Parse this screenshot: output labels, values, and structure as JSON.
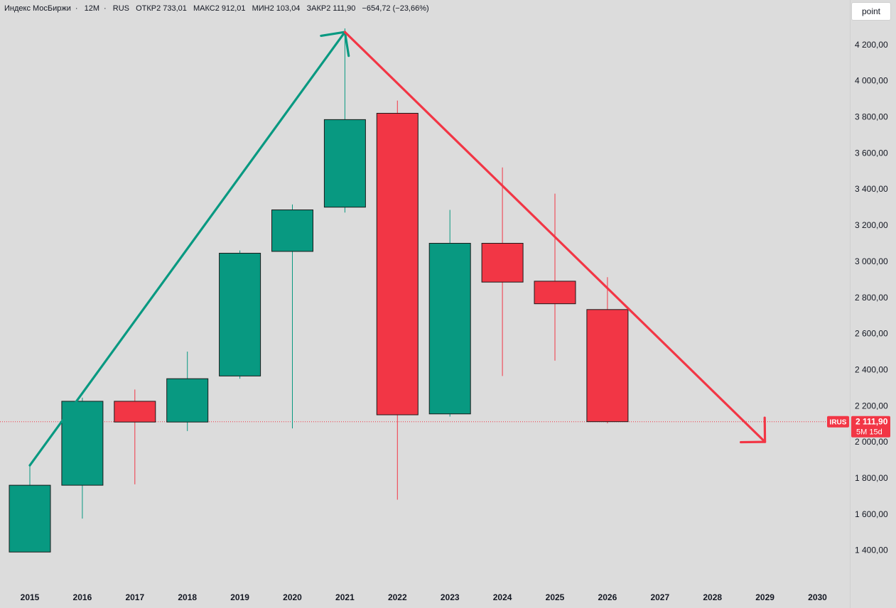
{
  "header": {
    "symbol": "Индекс МосБиржи",
    "interval": "12M",
    "exchange": "RUS",
    "open": "ОТКР2 733,01",
    "high": "МАКС2 912,01",
    "low": "МИН2 103,04",
    "close": "ЗАКР2 111,90",
    "change": "−654,72 (−23,66%)"
  },
  "toolbar": {
    "point_label": "point"
  },
  "price_label": {
    "ticker": "IRUS",
    "price": "2 111,90",
    "countdown": "5M 15d"
  },
  "colors": {
    "up": "#089981",
    "down": "#f23645",
    "background": "#dcdcdc",
    "text": "#131722"
  },
  "chart_data": {
    "type": "candlestick",
    "categories": [
      "2015",
      "2016",
      "2017",
      "2018",
      "2019",
      "2020",
      "2021",
      "2022",
      "2023",
      "2024",
      "2025",
      "2026",
      "2027",
      "2028",
      "2029",
      "2030"
    ],
    "ylim": [
      1320,
      4290
    ],
    "y_ticks": [
      1400,
      1600,
      1800,
      2000,
      2200,
      2400,
      2600,
      2800,
      3000,
      3200,
      3400,
      3600,
      3800,
      4000,
      4200
    ],
    "y_tick_labels": [
      "1 400,00",
      "1 600,00",
      "1 800,00",
      "2 000,00",
      "2 200,00",
      "2 400,00",
      "2 600,00",
      "2 800,00",
      "3 000,00",
      "3 200,00",
      "3 400,00",
      "3 600,00",
      "3 800,00",
      "4 000,00",
      "4 200,00"
    ],
    "candles": [
      {
        "x": "2015",
        "open": 1390,
        "high": 1865,
        "low": 1390,
        "close": 1760
      },
      {
        "x": "2016",
        "open": 1760,
        "high": 2245,
        "low": 1575,
        "close": 2225
      },
      {
        "x": "2017",
        "open": 2225,
        "high": 2290,
        "low": 1765,
        "close": 2110
      },
      {
        "x": "2018",
        "open": 2110,
        "high": 2500,
        "low": 2060,
        "close": 2350
      },
      {
        "x": "2019",
        "open": 2365,
        "high": 3060,
        "low": 2350,
        "close": 3045
      },
      {
        "x": "2020",
        "open": 3055,
        "high": 3315,
        "low": 2075,
        "close": 3285
      },
      {
        "x": "2021",
        "open": 3300,
        "high": 4290,
        "low": 3270,
        "close": 3785
      },
      {
        "x": "2022",
        "open": 3820,
        "high": 3890,
        "low": 1680,
        "close": 2150
      },
      {
        "x": "2023",
        "open": 2155,
        "high": 3285,
        "low": 2140,
        "close": 3100
      },
      {
        "x": "2024",
        "open": 3100,
        "high": 3520,
        "low": 2365,
        "close": 2885
      },
      {
        "x": "2025",
        "open": 2890,
        "high": 3375,
        "low": 2450,
        "close": 2765
      },
      {
        "x": "2026",
        "open": 2733.01,
        "high": 2912.01,
        "low": 2103.04,
        "close": 2111.9
      }
    ],
    "current_price": 2111.9,
    "drawings": [
      {
        "color": "up",
        "from": {
          "x": "2015",
          "y": 1870
        },
        "to": {
          "x": "2021",
          "y": 4270
        }
      },
      {
        "color": "down",
        "from": {
          "x": "2021",
          "y": 4270
        },
        "to": {
          "x": "2029",
          "y": 2000
        }
      }
    ]
  }
}
